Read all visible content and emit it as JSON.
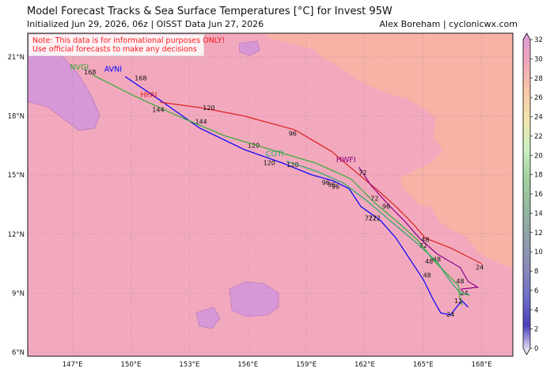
{
  "header": {
    "title": "Model Forecast Tracks & Sea Surface Temperatures [°C] for Invest 95W",
    "subtitle": "Initialized Jun 29, 2026, 06z | OISST Data Jun 27, 2026",
    "credit": "Alex Boreham | cyclonicwx.com"
  },
  "notice": {
    "line1": "Note: This data is for informational purposes ONLY!",
    "line2": "Use official forecasts to make any decisions"
  },
  "map": {
    "lat_labels": [
      "21°N",
      "18°N",
      "15°N",
      "12°N",
      "9°N",
      "6°N"
    ],
    "lon_labels": [
      "147°E",
      "150°E",
      "153°E",
      "156°E",
      "159°E",
      "162°E",
      "165°E",
      "168°E"
    ],
    "colors": {
      "sst_warm": "#f2a9bd",
      "sst_warmer": "#f6b3a6",
      "sst_cool": "#d798d8",
      "grid": "#b08898"
    }
  },
  "tracks": [
    {
      "model": "AVNI",
      "color": "#0000ff",
      "points": [
        [
          149.7,
          20.0
        ],
        [
          151.5,
          18.8
        ],
        [
          153.5,
          17.4
        ],
        [
          155.8,
          16.3
        ],
        [
          157.8,
          15.6
        ],
        [
          159.3,
          15.0
        ],
        [
          160.4,
          14.7
        ],
        [
          161.2,
          14.3
        ],
        [
          161.8,
          13.4
        ],
        [
          162.8,
          12.7
        ],
        [
          163.6,
          11.8
        ],
        [
          164.4,
          10.6
        ],
        [
          165.0,
          9.7
        ],
        [
          165.5,
          8.7
        ],
        [
          165.9,
          8.0
        ],
        [
          166.4,
          7.9
        ],
        [
          166.8,
          8.4
        ],
        [
          167.0,
          8.6
        ],
        [
          167.3,
          8.3
        ]
      ],
      "hours": [
        {
          "text": "168",
          "lon": 150.5,
          "lat": 19.8
        },
        {
          "text": "144",
          "lon": 153.6,
          "lat": 17.6
        },
        {
          "text": "120",
          "lon": 156.3,
          "lat": 16.4
        },
        {
          "text": "96",
          "lon": 160.3,
          "lat": 14.4
        },
        {
          "text": "72",
          "lon": 162.2,
          "lat": 12.7
        },
        {
          "text": "48",
          "lon": 165.2,
          "lat": 9.8
        },
        {
          "text": "24",
          "lon": 166.4,
          "lat": 7.8
        }
      ]
    },
    {
      "model": "NVGI",
      "color": "#33aa33",
      "points": [
        [
          148.0,
          20.1
        ],
        [
          150.2,
          19.0
        ],
        [
          152.4,
          18.0
        ],
        [
          154.8,
          17.0
        ],
        [
          157.5,
          16.2
        ],
        [
          159.5,
          15.6
        ],
        [
          161.3,
          14.8
        ],
        [
          162.5,
          13.6
        ],
        [
          163.7,
          12.6
        ],
        [
          164.7,
          11.7
        ],
        [
          165.5,
          10.7
        ],
        [
          166.2,
          10.0
        ],
        [
          166.8,
          9.4
        ],
        [
          166.9,
          8.7
        ],
        [
          167.0,
          8.4
        ]
      ],
      "hours": [
        {
          "text": "168",
          "lon": 147.9,
          "lat": 20.1
        },
        {
          "text": "144",
          "lon": 151.4,
          "lat": 18.2
        },
        {
          "text": "120",
          "lon": 158.3,
          "lat": 15.4
        },
        {
          "text": "72",
          "lon": 162.6,
          "lat": 12.7
        },
        {
          "text": "48",
          "lon": 165.7,
          "lat": 10.6
        }
      ]
    },
    {
      "model": "HFAI",
      "color": "#dd2222",
      "points": [
        [
          151.5,
          18.7
        ],
        [
          153.7,
          18.4
        ],
        [
          155.8,
          18.0
        ],
        [
          158.4,
          17.3
        ],
        [
          160.3,
          16.2
        ],
        [
          161.6,
          15.1
        ],
        [
          162.7,
          14.2
        ],
        [
          163.6,
          13.4
        ],
        [
          164.5,
          12.5
        ],
        [
          165.1,
          11.8
        ],
        [
          166.4,
          11.3
        ],
        [
          167.6,
          10.7
        ],
        [
          168.0,
          10.5
        ]
      ],
      "hours": [
        {
          "text": "120",
          "lon": 154.0,
          "lat": 18.3
        },
        {
          "text": "96",
          "lon": 158.3,
          "lat": 17.0
        },
        {
          "text": "72",
          "lon": 162.5,
          "lat": 13.7
        },
        {
          "text": "48",
          "lon": 165.1,
          "lat": 11.6
        },
        {
          "text": "24",
          "lon": 167.9,
          "lat": 10.2
        }
      ]
    },
    {
      "model": "HWFI",
      "color": "#8b008b",
      "points": [
        [
          161.7,
          15.4
        ],
        [
          162.3,
          14.5
        ],
        [
          163.3,
          13.4
        ],
        [
          164.1,
          12.6
        ],
        [
          164.8,
          11.8
        ],
        [
          165.7,
          11.0
        ],
        [
          166.9,
          10.3
        ],
        [
          167.3,
          9.6
        ],
        [
          167.8,
          9.3
        ],
        [
          166.9,
          9.2
        ]
      ],
      "hours": [
        {
          "text": "72",
          "lon": 161.9,
          "lat": 15.0
        },
        {
          "text": "48",
          "lon": 166.9,
          "lat": 9.5
        },
        {
          "text": "24",
          "lon": 167.1,
          "lat": 8.9
        }
      ]
    },
    {
      "model": "COTI",
      "color": "#22aa66",
      "points": [
        [
          158.0,
          15.7
        ],
        [
          159.5,
          15.2
        ],
        [
          160.9,
          14.6
        ],
        [
          162.1,
          13.7
        ],
        [
          163.4,
          12.6
        ],
        [
          164.6,
          11.6
        ],
        [
          165.7,
          10.6
        ],
        [
          166.4,
          9.6
        ],
        [
          166.9,
          9.0
        ],
        [
          167.4,
          8.9
        ]
      ],
      "hours": [
        {
          "text": "120",
          "lon": 157.1,
          "lat": 15.5
        },
        {
          "text": "96",
          "lon": 160.0,
          "lat": 14.5
        },
        {
          "text": "72",
          "lon": 162.4,
          "lat": 12.7
        },
        {
          "text": "48",
          "lon": 165.3,
          "lat": 10.5
        }
      ]
    }
  ],
  "extra_hour_labels": [
    {
      "text": "96",
      "lon": 163.1,
      "lat": 13.3
    },
    {
      "text": "96",
      "lon": 160.5,
      "lat": 14.3
    },
    {
      "text": "12",
      "lon": 166.8,
      "lat": 8.5
    },
    {
      "text": "72",
      "lon": 165.0,
      "lat": 11.3
    }
  ],
  "colorbar": {
    "ticks": [
      "0",
      "2",
      "4",
      "6",
      "8",
      "10",
      "12",
      "14",
      "16",
      "18",
      "20",
      "22",
      "24",
      "26",
      "28",
      "30",
      "32"
    ],
    "stops": [
      "#ffffff",
      "#4b3fb8",
      "#7070c8",
      "#8a8ab8",
      "#8fa0a8",
      "#95b8a0",
      "#a0d0a0",
      "#c8f0c0",
      "#f5e6b0",
      "#f8c8a8",
      "#f0a8b8",
      "#d89ad8"
    ]
  }
}
